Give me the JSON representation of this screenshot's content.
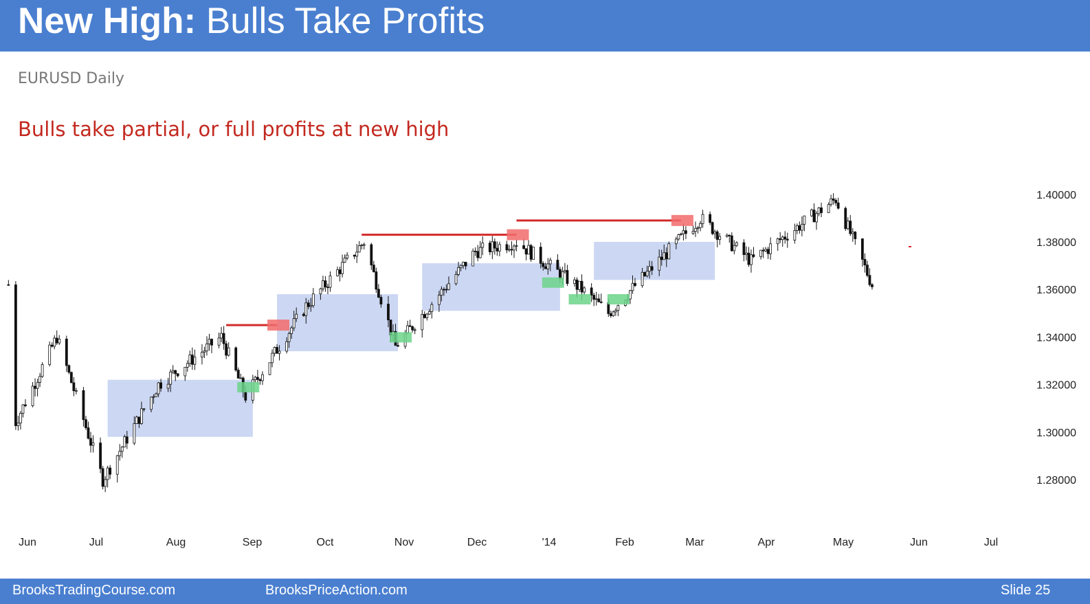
{
  "header": {
    "title_bold": "New High:",
    "title_rest": "Bulls Take Profits"
  },
  "subtitle": "EURUSD Daily",
  "annotation": "Bulls take partial, or full profits at new high",
  "footer": {
    "left": "BrooksTradingCourse.com",
    "center": "BrooksPriceAction.com",
    "slide": "Slide  25"
  },
  "colors": {
    "header": "#4a7fd0",
    "annotation": "#c3281f",
    "range_box": "#c9d5f2",
    "red_marker": "#f26b6b",
    "green_marker": "#6cd38a",
    "resistance_line": "#d22a2a",
    "candles": "#111111"
  },
  "chart_data": {
    "type": "candlestick",
    "title": "EURUSD Daily",
    "x_ticks": [
      "Jun",
      "Jul",
      "Aug",
      "Sep",
      "Oct",
      "Nov",
      "Dec",
      "'14",
      "Feb",
      "Mar",
      "Apr",
      "May",
      "Jun",
      "Jul"
    ],
    "y_ticks": [
      "1.40000",
      "1.38000",
      "1.36000",
      "1.34000",
      "1.32000",
      "1.30000",
      "1.28000"
    ],
    "ylim": [
      1.27,
      1.405
    ],
    "approx_closes_by_month_start": [
      {
        "date": "2013-06-01",
        "close": 1.3
      },
      {
        "date": "2013-06-20",
        "close": 1.34
      },
      {
        "date": "2013-07-09",
        "close": 1.28
      },
      {
        "date": "2013-08-01",
        "close": 1.32
      },
      {
        "date": "2013-08-27",
        "close": 1.34
      },
      {
        "date": "2013-09-06",
        "close": 1.315
      },
      {
        "date": "2013-10-01",
        "close": 1.353
      },
      {
        "date": "2013-10-25",
        "close": 1.38
      },
      {
        "date": "2013-11-07",
        "close": 1.336
      },
      {
        "date": "2013-12-10",
        "close": 1.376
      },
      {
        "date": "2013-12-27",
        "close": 1.38
      },
      {
        "date": "2014-01-23",
        "close": 1.36
      },
      {
        "date": "2014-02-03",
        "close": 1.35
      },
      {
        "date": "2014-03-13",
        "close": 1.39
      },
      {
        "date": "2014-04-03",
        "close": 1.372
      },
      {
        "date": "2014-05-08",
        "close": 1.398
      },
      {
        "date": "2014-05-23",
        "close": 1.362
      }
    ],
    "trading_ranges": [
      {
        "start": "2013-07-11",
        "end": "2013-09-09",
        "low": 1.298,
        "high": 1.322
      },
      {
        "start": "2013-09-19",
        "end": "2013-11-08",
        "low": 1.334,
        "high": 1.358
      },
      {
        "start": "2013-11-18",
        "end": "2014-01-14",
        "low": 1.351,
        "high": 1.371
      },
      {
        "start": "2014-01-28",
        "end": "2014-03-19",
        "low": 1.364,
        "high": 1.38
      }
    ],
    "resistance_lines": [
      {
        "start": "2013-08-29",
        "end": "2013-09-19",
        "price": 1.345
      },
      {
        "start": "2013-10-24",
        "end": "2013-12-27",
        "price": 1.383
      },
      {
        "start": "2013-12-27",
        "end": "2014-03-05",
        "price": 1.389
      }
    ],
    "red_markers": [
      {
        "date": "2013-09-19",
        "price": 1.345
      },
      {
        "date": "2013-12-27",
        "price": 1.383
      },
      {
        "date": "2014-03-05",
        "price": 1.389
      }
    ],
    "green_markers": [
      {
        "date": "2013-09-06",
        "price": 1.319
      },
      {
        "date": "2013-11-08",
        "price": 1.34
      },
      {
        "date": "2014-01-10",
        "price": 1.363
      },
      {
        "date": "2014-01-21",
        "price": 1.356
      },
      {
        "date": "2014-02-06",
        "price": 1.356
      }
    ]
  }
}
